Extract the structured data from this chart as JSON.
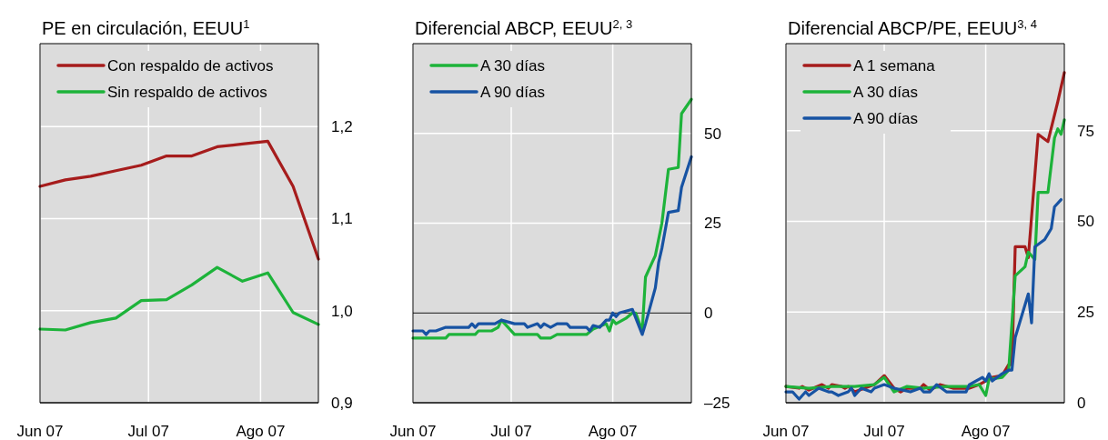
{
  "chart_data": [
    {
      "type": "line",
      "title": "PE en circulación, EEUU$^{1}$",
      "x": [
        "2007-06-01",
        "2007-06-08",
        "2007-06-15",
        "2007-06-22",
        "2007-06-29",
        "2007-07-06",
        "2007-07-13",
        "2007-07-20",
        "2007-07-27",
        "2007-08-03",
        "2007-08-10",
        "2007-08-17"
      ],
      "series": [
        {
          "name": "Con respaldo de activos",
          "color": "#a61c1c",
          "values": [
            1.135,
            1.142,
            1.146,
            1.152,
            1.158,
            1.168,
            1.168,
            1.178,
            1.181,
            1.184,
            1.135,
            1.056
          ]
        },
        {
          "name": "Sin respaldo de activos",
          "color": "#1db33a",
          "values": [
            0.98,
            0.979,
            0.987,
            0.992,
            1.011,
            1.012,
            1.028,
            1.047,
            1.032,
            1.041,
            0.998,
            0.985
          ]
        }
      ],
      "xlim": [
        "2007-06-01",
        "2007-08-17"
      ],
      "xticks": [
        {
          "value": "2007-06-01",
          "label": "Jun 07"
        },
        {
          "value": "2007-07-01",
          "label": "Jul 07"
        },
        {
          "value": "2007-08-01",
          "label": "Ago 07"
        }
      ],
      "ylim": [
        0.9,
        1.29
      ],
      "yticks": [
        {
          "value": 0.9,
          "label": "0,9"
        },
        {
          "value": 1.0,
          "label": "1,0"
        },
        {
          "value": 1.1,
          "label": "1,1"
        },
        {
          "value": 1.2,
          "label": "1,2"
        }
      ],
      "grid": true,
      "legend": "top left"
    },
    {
      "type": "line",
      "title": "Diferencial ABCP, EEUU$^{2, 3}$",
      "series": [
        {
          "name": "A 30 días",
          "color": "#1db33a",
          "x": [
            "2007-06-01",
            "2007-06-11",
            "2007-06-12",
            "2007-06-20",
            "2007-06-21",
            "2007-06-25",
            "2007-06-27",
            "2007-06-28",
            "2007-07-02",
            "2007-07-09",
            "2007-07-10",
            "2007-07-13",
            "2007-07-15",
            "2007-07-24",
            "2007-07-26",
            "2007-07-30",
            "2007-07-31",
            "2007-08-01",
            "2007-08-02",
            "2007-08-05",
            "2007-08-07",
            "2007-08-08",
            "2007-08-10",
            "2007-08-11",
            "2007-08-13",
            "2007-08-14",
            "2007-08-16",
            "2007-08-18",
            "2007-08-21",
            "2007-08-22",
            "2007-08-25"
          ],
          "values": [
            -7,
            -7,
            -6,
            -6,
            -5,
            -5,
            -4,
            -2,
            -6,
            -6,
            -7,
            -7,
            -6,
            -6,
            -4.5,
            -3,
            -5,
            -2,
            -3,
            -1.5,
            0,
            0,
            -5,
            10,
            14,
            16,
            25,
            40,
            40.5,
            55.5,
            59.5
          ]
        },
        {
          "name": "A 90 días",
          "color": "#1753a3",
          "x": [
            "2007-06-01",
            "2007-06-04",
            "2007-06-05",
            "2007-06-06",
            "2007-06-08",
            "2007-06-11",
            "2007-06-18",
            "2007-06-19",
            "2007-06-20",
            "2007-06-21",
            "2007-06-26",
            "2007-06-28",
            "2007-07-02",
            "2007-07-05",
            "2007-07-06",
            "2007-07-09",
            "2007-07-10",
            "2007-07-11",
            "2007-07-13",
            "2007-07-15",
            "2007-07-18",
            "2007-07-19",
            "2007-07-24",
            "2007-07-25",
            "2007-07-26",
            "2007-07-28",
            "2007-07-30",
            "2007-07-31",
            "2007-08-01",
            "2007-08-02",
            "2007-08-03",
            "2007-08-07",
            "2007-08-10",
            "2007-08-11",
            "2007-08-14",
            "2007-08-15",
            "2007-08-16",
            "2007-08-18",
            "2007-08-21",
            "2007-08-22",
            "2007-08-25"
          ],
          "values": [
            -5,
            -5,
            -6,
            -5,
            -5,
            -4,
            -4,
            -3,
            -4,
            -3,
            -3,
            -2,
            -3,
            -3,
            -4,
            -3,
            -4,
            -3,
            -4,
            -3,
            -3,
            -4,
            -4,
            -5,
            -3.5,
            -4,
            -2,
            -2,
            0,
            -1,
            0,
            1,
            -6,
            -3,
            7,
            14,
            18,
            28,
            28.5,
            35,
            43.5
          ]
        }
      ],
      "xlim": [
        "2007-06-01",
        "2007-08-25"
      ],
      "xticks": [
        {
          "value": "2007-06-01",
          "label": "Jun 07"
        },
        {
          "value": "2007-07-01",
          "label": "Jul 07"
        },
        {
          "value": "2007-08-01",
          "label": "Ago 07"
        }
      ],
      "ylim": [
        -25,
        75
      ],
      "yticks": [
        {
          "value": -25,
          "label": "–25"
        },
        0,
        25,
        50
      ],
      "grid": true,
      "legend": "top left",
      "ref_lines": [
        {
          "axis": "y",
          "value": 0,
          "color": "#000000"
        }
      ]
    },
    {
      "type": "line",
      "title": "Diferencial ABCP/PE, EEUU$^{3, 4}$",
      "series": [
        {
          "name": "A 1 semana",
          "color": "#a61c1c",
          "x": [
            "2007-06-01",
            "2007-06-05",
            "2007-06-06",
            "2007-06-08",
            "2007-06-12",
            "2007-06-14",
            "2007-06-15",
            "2007-06-18",
            "2007-06-19",
            "2007-06-20",
            "2007-06-22",
            "2007-06-25",
            "2007-06-28",
            "2007-07-01",
            "2007-07-04",
            "2007-07-06",
            "2007-07-08",
            "2007-07-12",
            "2007-07-13",
            "2007-07-15",
            "2007-07-18",
            "2007-07-22",
            "2007-07-27",
            "2007-07-30",
            "2007-08-01",
            "2007-08-03",
            "2007-08-06",
            "2007-08-08",
            "2007-08-09",
            "2007-08-10",
            "2007-08-13",
            "2007-08-14",
            "2007-08-17",
            "2007-08-20",
            "2007-08-23",
            "2007-08-25"
          ],
          "values": [
            4.5,
            4,
            4.5,
            3.5,
            5,
            4,
            5,
            4.5,
            4,
            4.5,
            3,
            4,
            5,
            7.5,
            4,
            3,
            4,
            4,
            5,
            3.5,
            5,
            4,
            4,
            5,
            6,
            7,
            7.5,
            10.5,
            10.5,
            43,
            43,
            40,
            74,
            72,
            83,
            91
          ]
        },
        {
          "name": "A 30 días",
          "color": "#1db33a",
          "x": [
            "2007-06-01",
            "2007-06-08",
            "2007-06-15",
            "2007-06-22",
            "2007-06-28",
            "2007-07-01",
            "2007-07-04",
            "2007-07-08",
            "2007-07-13",
            "2007-07-20",
            "2007-07-27",
            "2007-07-30",
            "2007-08-01",
            "2007-08-02",
            "2007-08-06",
            "2007-08-08",
            "2007-08-10",
            "2007-08-13",
            "2007-08-14",
            "2007-08-16",
            "2007-08-17",
            "2007-08-20",
            "2007-08-22",
            "2007-08-23",
            "2007-08-24",
            "2007-08-25"
          ],
          "values": [
            4.5,
            4,
            4.5,
            4.5,
            5,
            7,
            3,
            4.5,
            4,
            4.5,
            4.5,
            5,
            2,
            6.5,
            7,
            9,
            35,
            37.5,
            41.5,
            39.5,
            58,
            58,
            73,
            75.5,
            74,
            78
          ]
        },
        {
          "name": "A 90 días",
          "color": "#1753a3",
          "x": [
            "2007-06-01",
            "2007-06-03",
            "2007-06-05",
            "2007-06-07",
            "2007-06-08",
            "2007-06-11",
            "2007-06-14",
            "2007-06-15",
            "2007-06-17",
            "2007-06-20",
            "2007-06-21",
            "2007-06-22",
            "2007-06-24",
            "2007-06-27",
            "2007-06-28",
            "2007-07-01",
            "2007-07-04",
            "2007-07-09",
            "2007-07-12",
            "2007-07-13",
            "2007-07-15",
            "2007-07-17",
            "2007-07-20",
            "2007-07-26",
            "2007-07-27",
            "2007-07-31",
            "2007-08-01",
            "2007-08-02",
            "2007-08-03",
            "2007-08-06",
            "2007-08-08",
            "2007-08-09",
            "2007-08-10",
            "2007-08-14",
            "2007-08-15",
            "2007-08-16",
            "2007-08-19",
            "2007-08-21",
            "2007-08-22",
            "2007-08-24"
          ],
          "values": [
            3,
            3,
            1,
            3,
            2,
            4,
            3,
            3,
            2,
            3,
            4,
            2,
            4,
            3,
            4,
            5,
            4,
            3,
            4,
            3,
            3,
            5,
            3,
            3,
            5,
            7,
            6,
            8,
            6,
            8,
            9,
            9,
            18,
            30,
            22,
            43,
            45,
            48,
            54,
            56
          ]
        }
      ],
      "xlim": [
        "2007-06-01",
        "2007-08-25"
      ],
      "xticks": [
        {
          "value": "2007-06-01",
          "label": "Jun 07"
        },
        {
          "value": "2007-07-01",
          "label": "Jul 07"
        },
        {
          "value": "2007-08-01",
          "label": "Ago 07"
        }
      ],
      "ylim": [
        0,
        99
      ],
      "yticks": [
        0,
        25,
        50,
        75
      ],
      "grid": true,
      "legend": "top left"
    }
  ]
}
